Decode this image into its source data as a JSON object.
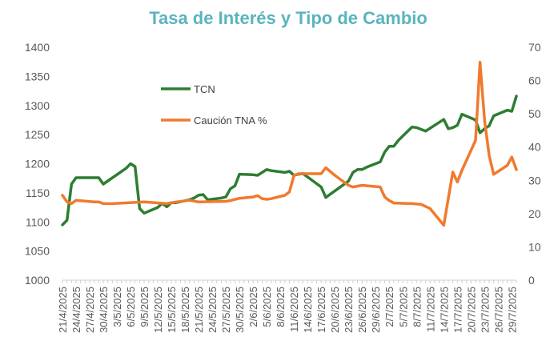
{
  "chart_data": {
    "type": "line",
    "title": "Tasa de Interés y Tipo de Cambio",
    "title_color": "#5AB4BE",
    "x_tick_labels": [
      "21/4/2025",
      "24/4/2025",
      "27/4/2025",
      "30/4/2025",
      "3/5/2025",
      "6/5/2025",
      "9/5/2025",
      "12/5/2025",
      "15/5/2025",
      "18/5/2025",
      "21/5/2025",
      "24/5/2025",
      "27/5/2025",
      "30/5/2025",
      "2/6/2025",
      "5/6/2025",
      "8/6/2025",
      "11/6/2025",
      "14/6/2025",
      "17/6/2025",
      "20/6/2025",
      "23/6/2025",
      "26/6/2025",
      "29/6/2025",
      "2/7/2025",
      "5/7/2025",
      "8/7/2025",
      "11/7/2025",
      "14/7/2025",
      "17/7/2025",
      "20/7/2025",
      "23/7/2025",
      "26/7/2025",
      "29/7/2025"
    ],
    "x_range": [
      "2025-04-21",
      "2025-07-30"
    ],
    "y_left": {
      "ticks": [
        "1000",
        "1050",
        "1100",
        "1150",
        "1200",
        "1250",
        "1300",
        "1350",
        "1400"
      ],
      "range": [
        1000,
        1400
      ]
    },
    "y_right": {
      "ticks": [
        "0",
        "10",
        "20",
        "30",
        "40",
        "50",
        "60",
        "70"
      ],
      "range": [
        0,
        70
      ]
    },
    "legend_placement": "inside-top-left",
    "series": [
      {
        "name": "TCN",
        "axis": "left",
        "color": "#2E7D32",
        "points": [
          [
            "2025-04-21",
            1095
          ],
          [
            "2025-04-22",
            1103
          ],
          [
            "2025-04-23",
            1165
          ],
          [
            "2025-04-24",
            1176
          ],
          [
            "2025-04-25",
            1176
          ],
          [
            "2025-04-28",
            1176
          ],
          [
            "2025-04-29",
            1176
          ],
          [
            "2025-04-30",
            1165
          ],
          [
            "2025-05-05",
            1192
          ],
          [
            "2025-05-06",
            1200
          ],
          [
            "2025-05-07",
            1195
          ],
          [
            "2025-05-08",
            1123
          ],
          [
            "2025-05-09",
            1115
          ],
          [
            "2025-05-12",
            1125
          ],
          [
            "2025-05-13",
            1132
          ],
          [
            "2025-05-14",
            1126
          ],
          [
            "2025-05-15",
            1133
          ],
          [
            "2025-05-16",
            1133
          ],
          [
            "2025-05-19",
            1138
          ],
          [
            "2025-05-20",
            1141
          ],
          [
            "2025-05-21",
            1146
          ],
          [
            "2025-05-22",
            1147
          ],
          [
            "2025-05-23",
            1138
          ],
          [
            "2025-05-26",
            1141
          ],
          [
            "2025-05-27",
            1143
          ],
          [
            "2025-05-28",
            1157
          ],
          [
            "2025-05-29",
            1162
          ],
          [
            "2025-05-30",
            1182
          ],
          [
            "2025-06-02",
            1181
          ],
          [
            "2025-06-03",
            1180
          ],
          [
            "2025-06-04",
            1185
          ],
          [
            "2025-06-05",
            1190
          ],
          [
            "2025-06-06",
            1188
          ],
          [
            "2025-06-09",
            1185
          ],
          [
            "2025-06-10",
            1187
          ],
          [
            "2025-06-11",
            1180
          ],
          [
            "2025-06-12",
            1182
          ],
          [
            "2025-06-13",
            1183
          ],
          [
            "2025-06-17",
            1160
          ],
          [
            "2025-06-18",
            1142
          ],
          [
            "2025-06-23",
            1170
          ],
          [
            "2025-06-24",
            1185
          ],
          [
            "2025-06-25",
            1190
          ],
          [
            "2025-06-26",
            1190
          ],
          [
            "2025-06-27",
            1194
          ],
          [
            "2025-06-30",
            1203
          ],
          [
            "2025-07-01",
            1220
          ],
          [
            "2025-07-02",
            1230
          ],
          [
            "2025-07-03",
            1230
          ],
          [
            "2025-07-04",
            1240
          ],
          [
            "2025-07-07",
            1263
          ],
          [
            "2025-07-08",
            1262
          ],
          [
            "2025-07-10",
            1256
          ],
          [
            "2025-07-14",
            1276
          ],
          [
            "2025-07-15",
            1260
          ],
          [
            "2025-07-16",
            1262
          ],
          [
            "2025-07-17",
            1266
          ],
          [
            "2025-07-18",
            1285
          ],
          [
            "2025-07-21",
            1275
          ],
          [
            "2025-07-22",
            1253
          ],
          [
            "2025-07-23",
            1260
          ],
          [
            "2025-07-24",
            1265
          ],
          [
            "2025-07-25",
            1282
          ],
          [
            "2025-07-28",
            1292
          ],
          [
            "2025-07-29",
            1290
          ],
          [
            "2025-07-30",
            1316
          ]
        ]
      },
      {
        "name": "Caución TNA %",
        "axis": "right",
        "color": "#F07A2E",
        "points": [
          [
            "2025-04-21",
            25.5
          ],
          [
            "2025-04-22",
            23.5
          ],
          [
            "2025-04-23",
            23
          ],
          [
            "2025-04-24",
            24
          ],
          [
            "2025-04-28",
            23.5
          ],
          [
            "2025-04-29",
            23.5
          ],
          [
            "2025-04-30",
            23
          ],
          [
            "2025-05-02",
            23
          ],
          [
            "2025-05-09",
            23.5
          ],
          [
            "2025-05-14",
            23
          ],
          [
            "2025-05-16",
            23.5
          ],
          [
            "2025-05-19",
            24
          ],
          [
            "2025-05-21",
            23.5
          ],
          [
            "2025-05-27",
            23.7
          ],
          [
            "2025-05-28",
            23.9
          ],
          [
            "2025-05-30",
            24.6
          ],
          [
            "2025-06-02",
            25
          ],
          [
            "2025-06-03",
            25.4
          ],
          [
            "2025-06-04",
            24.5
          ],
          [
            "2025-06-05",
            24.3
          ],
          [
            "2025-06-06",
            24.5
          ],
          [
            "2025-06-09",
            25.5
          ],
          [
            "2025-06-10",
            26.5
          ],
          [
            "2025-06-11",
            31.5
          ],
          [
            "2025-06-12",
            32
          ],
          [
            "2025-06-13",
            32
          ],
          [
            "2025-06-16",
            32
          ],
          [
            "2025-06-17",
            32
          ],
          [
            "2025-06-18",
            33.8
          ],
          [
            "2025-06-20",
            31.5
          ],
          [
            "2025-06-23",
            28.5
          ],
          [
            "2025-06-24",
            28
          ],
          [
            "2025-06-26",
            28.5
          ],
          [
            "2025-06-30",
            28
          ],
          [
            "2025-07-01",
            25
          ],
          [
            "2025-07-02",
            23.9
          ],
          [
            "2025-07-03",
            23.2
          ],
          [
            "2025-07-07",
            23
          ],
          [
            "2025-07-09",
            22.8
          ],
          [
            "2025-07-11",
            21.5
          ],
          [
            "2025-07-14",
            16.5
          ],
          [
            "2025-07-16",
            32.5
          ],
          [
            "2025-07-17",
            29.5
          ],
          [
            "2025-07-18",
            33
          ],
          [
            "2025-07-21",
            42
          ],
          [
            "2025-07-22",
            65.5
          ],
          [
            "2025-07-23",
            48
          ],
          [
            "2025-07-24",
            37.5
          ],
          [
            "2025-07-25",
            31.8
          ],
          [
            "2025-07-28",
            34.5
          ],
          [
            "2025-07-29",
            37
          ],
          [
            "2025-07-30",
            33.2
          ]
        ]
      }
    ]
  }
}
